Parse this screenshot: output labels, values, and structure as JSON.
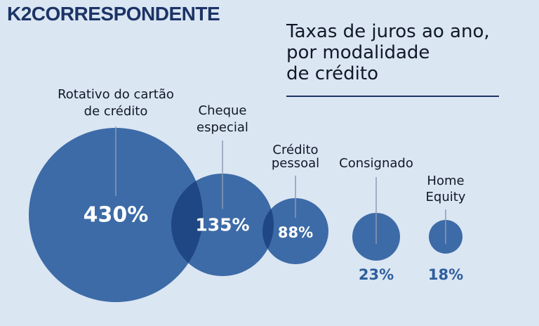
{
  "brand": "K2CORRESPONDENTE",
  "title_lines": [
    "Taxas de juros ao ano,",
    "por modalidade",
    "de crédito"
  ],
  "colors": {
    "background": "#dbe6f3",
    "bubble": "#3d6ba7",
    "overlap": "#1f4783",
    "value_outside": "#2e5e9c",
    "brand": "#1c3466"
  },
  "chart_data": {
    "type": "bubble",
    "unit": "% ao ano",
    "categories": [
      {
        "name_lines": [
          "Rotativo do cartão",
          "de crédito"
        ],
        "value": 430,
        "value_label": "430%"
      },
      {
        "name_lines": [
          "Cheque",
          "especial"
        ],
        "value": 135,
        "value_label": "135%"
      },
      {
        "name_lines": [
          "Crédito",
          "pessoal"
        ],
        "value": 88,
        "value_label": "88%"
      },
      {
        "name_lines": [
          "Consignado"
        ],
        "value": 23,
        "value_label": "23%"
      },
      {
        "name_lines": [
          "Home",
          "Equity"
        ],
        "value": 18,
        "value_label": "18%"
      }
    ]
  }
}
